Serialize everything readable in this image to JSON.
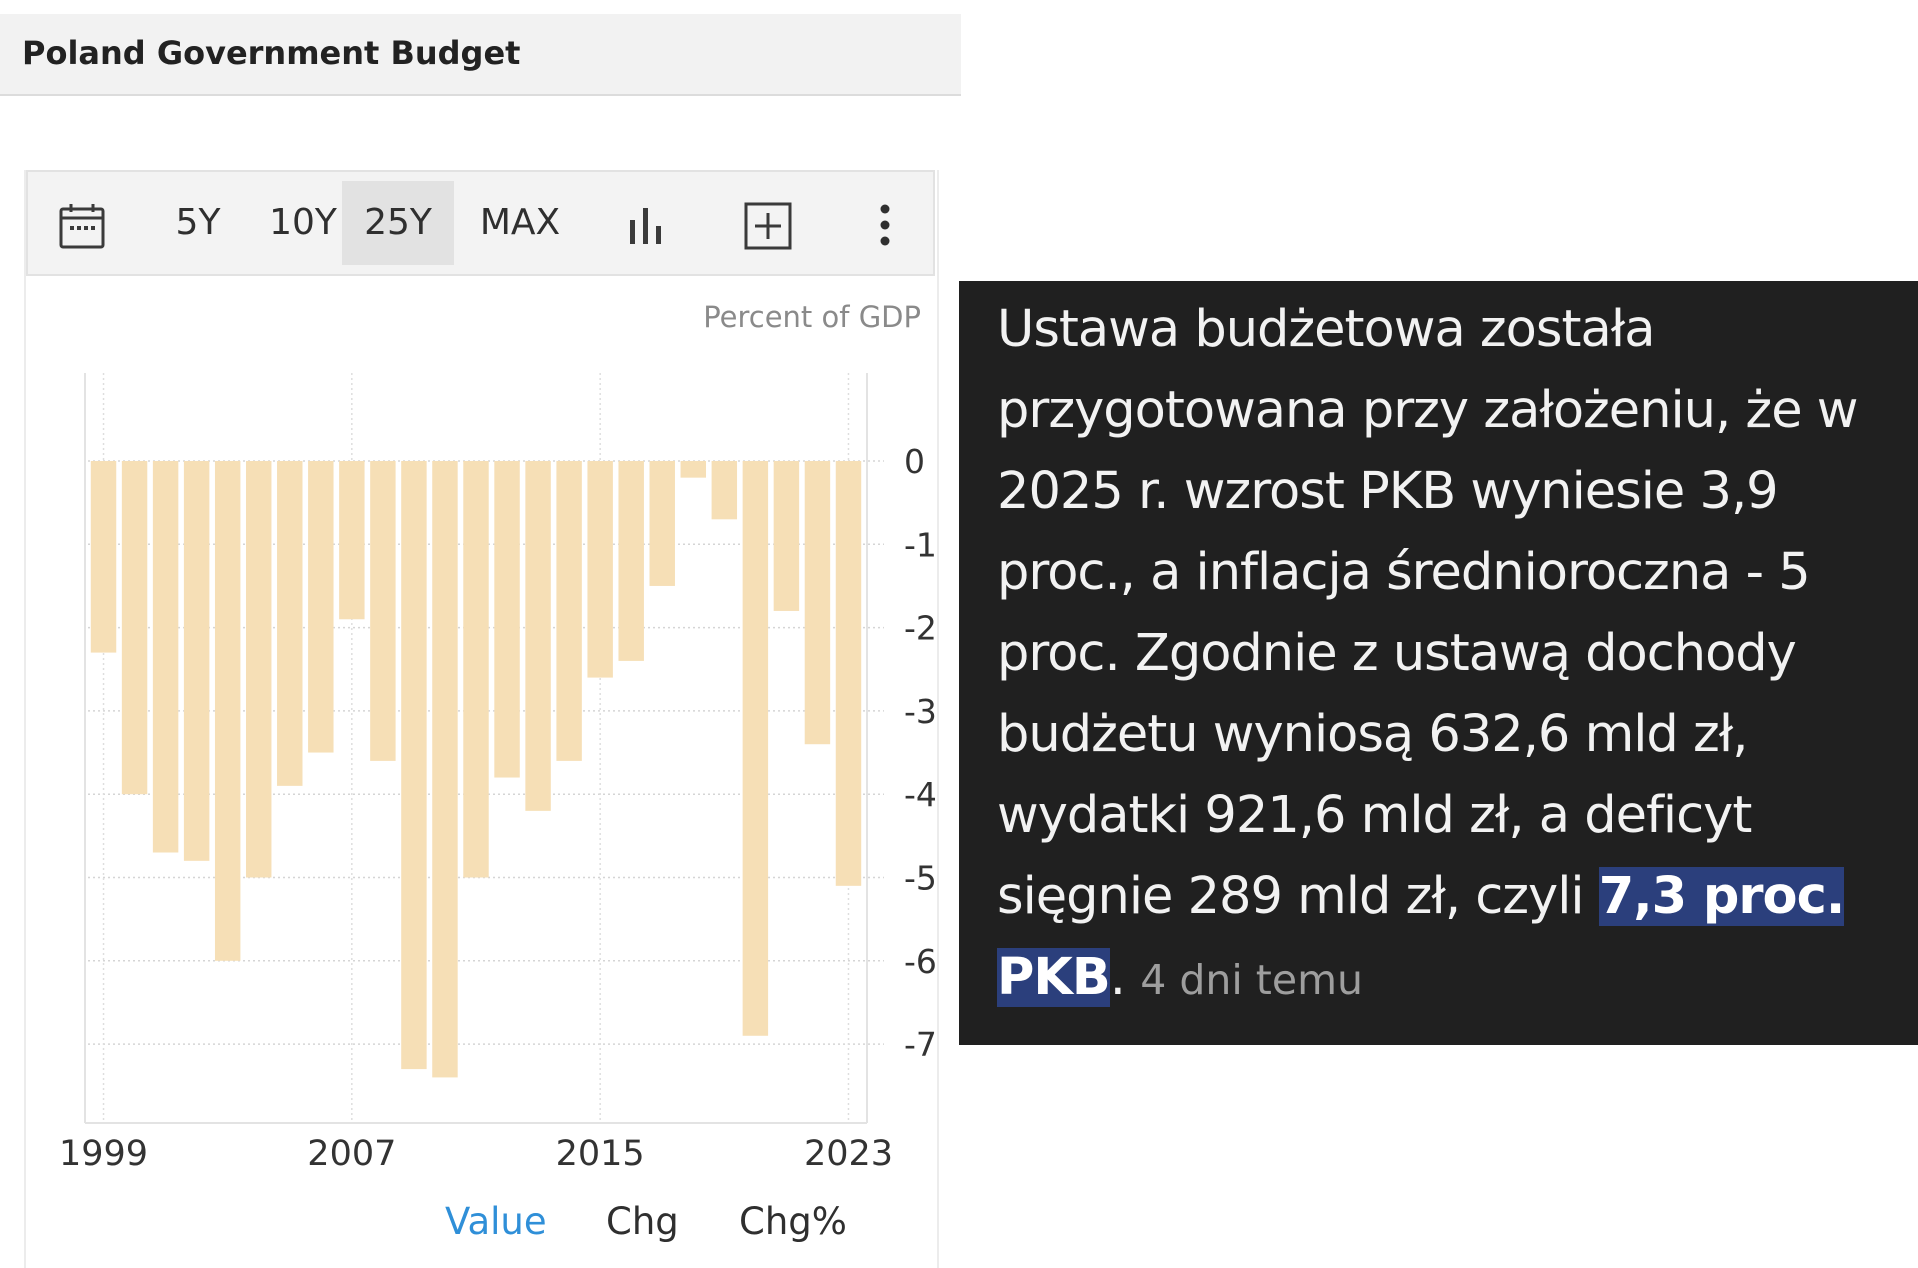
{
  "header": {
    "title": "Poland Government Budget"
  },
  "toolbar": {
    "calendar_icon": "calendar-icon",
    "ranges": [
      "5Y",
      "10Y",
      "25Y",
      "MAX"
    ],
    "active_range": "25Y",
    "bar_chart_icon": "bar-chart-icon",
    "add_icon": "plus-square-icon",
    "more_icon": "more-vertical-icon"
  },
  "tabs": {
    "value": "Value",
    "chg": "Chg",
    "chg_pct": "Chg%",
    "active": "Value"
  },
  "colors": {
    "bar": "#f6dfb6",
    "active_tab": "#2f8fd8",
    "highlight": "#2b3f7c"
  },
  "chart_data": {
    "type": "bar",
    "ylabel": "Percent of GDP",
    "categories": [
      "1999",
      "2000",
      "2001",
      "2002",
      "2003",
      "2004",
      "2005",
      "2006",
      "2007",
      "2008",
      "2009",
      "2010",
      "2011",
      "2012",
      "2013",
      "2014",
      "2015",
      "2016",
      "2017",
      "2018",
      "2019",
      "2020",
      "2021",
      "2022",
      "2023"
    ],
    "values": [
      -2.3,
      -4.0,
      -4.7,
      -4.8,
      -6.0,
      -5.0,
      -3.9,
      -3.5,
      -1.9,
      -3.6,
      -7.3,
      -7.4,
      -5.0,
      -3.8,
      -4.2,
      -3.6,
      -2.6,
      -2.4,
      -1.5,
      -0.2,
      -0.7,
      -6.9,
      -1.8,
      -3.4,
      -5.1
    ],
    "x_tick_labels": [
      "1999",
      "2007",
      "2015",
      "2023"
    ],
    "y_ticks": [
      0,
      -1,
      -2,
      -3,
      -4,
      -5,
      -6,
      -7
    ],
    "ylim": [
      -8,
      1
    ],
    "grid": true,
    "y_axis_side": "right"
  },
  "article": {
    "text": "Ustawa budżetowa została przygotowana przy założeniu, że w 2025 r. wzrost PKB wyniesie 3,9 proc., a inflacja średnioroczna - 5 proc. Zgodnie z ustawą dochody budżetu wyniosą 632,6 mld zł, wydatki 921,6 mld zł, a deficyt sięgnie 289 mld zł, czyli ",
    "highlight": "7,3 proc. PKB",
    "after": ".",
    "time": "4 dni temu"
  }
}
